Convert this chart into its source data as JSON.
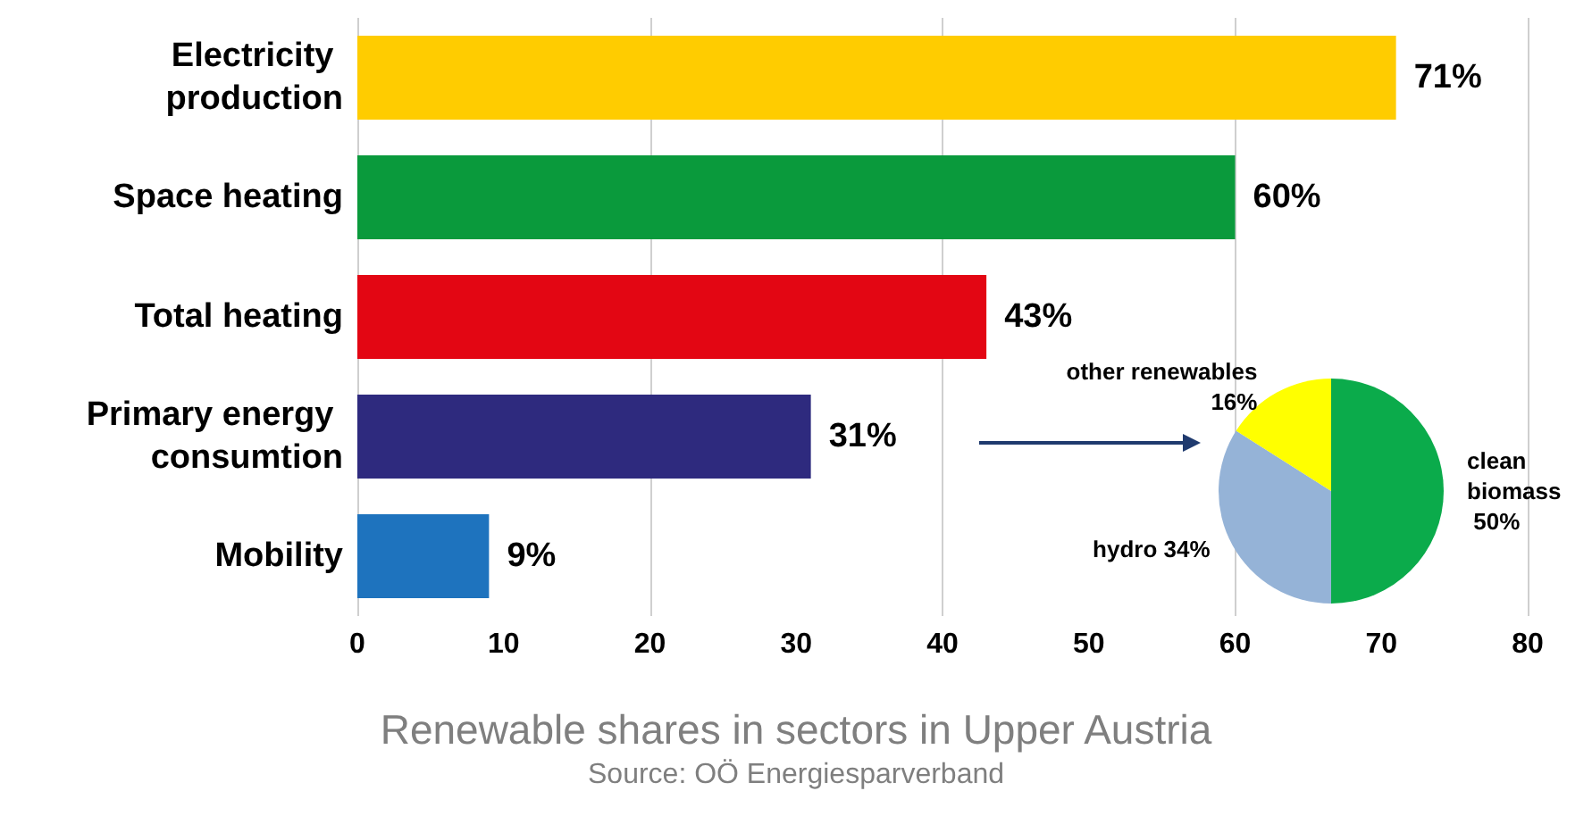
{
  "chart_data": [
    {
      "type": "bar",
      "orientation": "horizontal",
      "title": "Renewable shares in sectors in Upper Austria",
      "categories": [
        "Electricity production",
        "Space heating",
        "Total heating",
        "Primary energy consumtion",
        "Mobility"
      ],
      "values": [
        71,
        60,
        43,
        31,
        9
      ],
      "colors": [
        "#ffcc00",
        "#0a9a3c",
        "#e30613",
        "#2e2a7e",
        "#1e73be"
      ],
      "value_labels": [
        "71%",
        "60%",
        "43%",
        "31%",
        "9%"
      ],
      "xlim": [
        0,
        80
      ],
      "xticks": [
        0,
        10,
        20,
        30,
        40,
        50,
        60,
        70,
        80
      ],
      "grid": "x",
      "annotations": [
        "Source: OÖ Energiesparverband"
      ]
    },
    {
      "type": "pie",
      "categories": [
        "clean biomass",
        "hydro",
        "other renewables"
      ],
      "values": [
        50,
        34,
        16
      ],
      "colors": [
        "#0bab4b",
        "#95b3d7",
        "#ffff00"
      ],
      "value_labels": [
        "50%",
        "34%",
        "16%"
      ]
    }
  ]
}
